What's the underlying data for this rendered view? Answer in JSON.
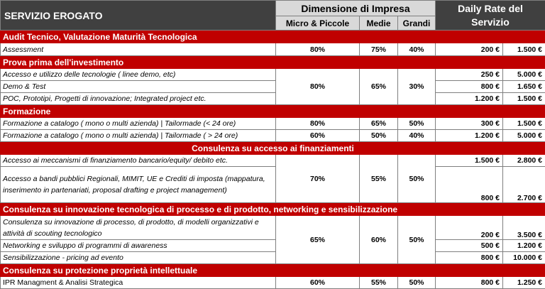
{
  "header": {
    "title": "SERVIZIO EROGATO",
    "dimension": "Dimensione di Impresa",
    "col_micro": "Micro & Piccole",
    "col_medie": "Medie",
    "col_grandi": "Grandi",
    "rate": "Daily Rate del Servizio"
  },
  "sections": {
    "s1": "Audit Tecnico, Valutazione Maturità Tecnologica",
    "s2": "Prova prima dell'investimento",
    "s3": "Formazione",
    "s4": "Consulenza su accesso ai finanziamenti",
    "s5": "Consulenza su innovazione tecnologica di processo e di prodotto, networking e sensibilizzazione",
    "s6": "Consulenza su protezione proprietà intellettuale"
  },
  "rows": {
    "r1": {
      "label": "Assessment",
      "micro": "80%",
      "medie": "75%",
      "grandi": "40%",
      "rate1": "200 €",
      "rate2": "1.500 €"
    },
    "r2": {
      "label": "Accesso e utilizzo delle tecnologie ( linee demo, etc)",
      "rate1": "250 €",
      "rate2": "5.000 €"
    },
    "r3": {
      "label": "Demo & Test",
      "rate1": "800 €",
      "rate2": "1.650 €"
    },
    "r4": {
      "label": "POC, Prototipi, Progetti di innovazione; Integrated project etc.",
      "rate1": "1.200 €",
      "rate2": "1.500 €"
    },
    "g2": {
      "micro": "80%",
      "medie": "65%",
      "grandi": "30%"
    },
    "r5": {
      "label": "Formazione a catalogo ( mono o multi azienda) | Tailormade (< 24 ore)",
      "micro": "80%",
      "medie": "65%",
      "grandi": "50%",
      "rate1": "300 €",
      "rate2": "1.500 €"
    },
    "r6": {
      "label": "Formazione a catalogo ( mono o multi azienda) | Tailormade ( > 24 ore)",
      "micro": "60%",
      "medie": "50%",
      "grandi": "40%",
      "rate1": "1.200 €",
      "rate2": "5.000 €"
    },
    "r7": {
      "label": "Accesso ai meccanismi di finanziamento bancario/equity/ debito etc.",
      "rate1": "1.500 €",
      "rate2": "2.800 €"
    },
    "r8": {
      "label": "Accesso a bandi pubblici Regionali, MIMIT, UE e Crediti di imposta (mappatura, inserimento in partenariati, proposal drafting e project management)",
      "rate1": "800 €",
      "rate2": "2.700 €"
    },
    "g4": {
      "micro": "70%",
      "medie": "55%",
      "grandi": "50%"
    },
    "r9": {
      "label": "Consulenza su innovazione di processo, di prodotto, di modelli organizzativi e attività di scouting tecnologico",
      "rate1": "200 €",
      "rate2": "3.500 €"
    },
    "r10": {
      "label": "Networking e sviluppo di programmi di awareness",
      "rate1": "500 €",
      "rate2": "1.200 €"
    },
    "r11": {
      "label": "Sensibilizzazione - pricing ad evento",
      "rate1": "800 €",
      "rate2": "10.000 €"
    },
    "g5": {
      "micro": "65%",
      "medie": "60%",
      "grandi": "50%"
    },
    "r12": {
      "label": "IPR Managment & Analisi Strategica",
      "micro": "60%",
      "medie": "55%",
      "grandi": "50%",
      "rate1": "800 €",
      "rate2": "1.250 €"
    }
  }
}
